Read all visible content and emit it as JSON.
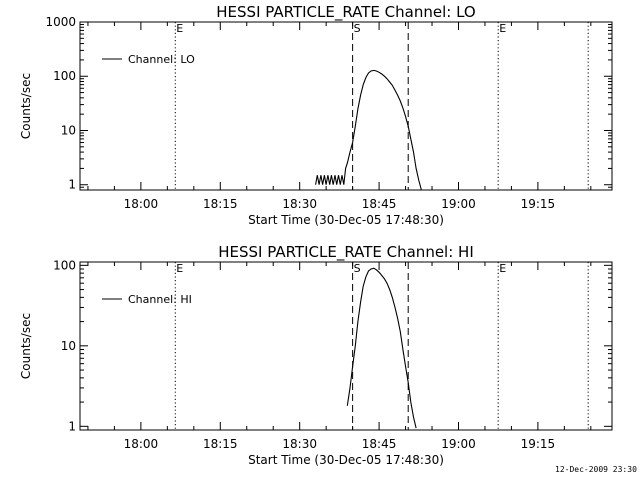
{
  "chart_data": [
    {
      "type": "line",
      "title": "HESSI PARTICLE_RATE Channel: LO",
      "xlabel": "Start Time (30-Dec-05 17:48:30)",
      "ylabel": "Counts/sec",
      "y_scale": "log",
      "ylim": [
        0.8,
        1000
      ],
      "xlim": [
        "17:48:30",
        "19:29:00"
      ],
      "x_ticks": [
        "18:00",
        "18:15",
        "18:30",
        "18:45",
        "19:00",
        "19:15"
      ],
      "y_ticks": [
        "1",
        "10",
        "100",
        "1000"
      ],
      "legend": {
        "entries": [
          "Channel: LO"
        ],
        "position": "top-left"
      },
      "markers": [
        {
          "style": "dotted",
          "time": "18:06:30",
          "label": "E"
        },
        {
          "style": "dashed",
          "time": "18:40:00",
          "label": "S"
        },
        {
          "style": "dashed",
          "time": "18:50:30",
          "label": ""
        },
        {
          "style": "dotted",
          "time": "19:07:30",
          "label": "E"
        },
        {
          "style": "dotted",
          "time": "19:24:30",
          "label": ""
        }
      ],
      "series": [
        {
          "name": "Channel: LO",
          "x": [
            "18:33:00",
            "18:33:20",
            "18:33:40",
            "18:34:00",
            "18:34:20",
            "18:34:40",
            "18:35:00",
            "18:35:20",
            "18:35:40",
            "18:36:00",
            "18:36:20",
            "18:36:40",
            "18:37:00",
            "18:37:20",
            "18:37:40",
            "18:38:00",
            "18:38:20",
            "18:38:40",
            "18:39:00",
            "18:39:30",
            "18:40:00",
            "18:40:30",
            "18:41:00",
            "18:41:30",
            "18:42:00",
            "18:42:30",
            "18:43:00",
            "18:43:30",
            "18:44:00",
            "18:44:30",
            "18:45:00",
            "18:45:30",
            "18:46:00",
            "18:46:30",
            "18:47:00",
            "18:47:30",
            "18:48:00",
            "18:48:30",
            "18:49:00",
            "18:49:30",
            "18:50:00",
            "18:50:30",
            "18:51:00",
            "18:51:30",
            "18:52:00",
            "18:52:30",
            "18:53:00"
          ],
          "y": [
            1,
            1.5,
            1,
            1.5,
            1,
            1.5,
            1,
            1.5,
            1,
            1.5,
            1,
            1.5,
            1,
            1.5,
            1,
            1.5,
            1,
            2,
            2.5,
            4,
            6,
            12,
            25,
            45,
            70,
            95,
            115,
            125,
            128,
            125,
            118,
            110,
            100,
            90,
            78,
            68,
            55,
            45,
            35,
            26,
            18,
            12,
            7,
            4,
            2,
            1.2,
            0.8
          ]
        }
      ]
    },
    {
      "type": "line",
      "title": "HESSI PARTICLE_RATE Channel: HI",
      "xlabel": "Start Time (30-Dec-05 17:48:30)",
      "ylabel": "Counts/sec",
      "y_scale": "log",
      "ylim": [
        0.9,
        110
      ],
      "xlim": [
        "17:48:30",
        "19:29:00"
      ],
      "x_ticks": [
        "18:00",
        "18:15",
        "18:30",
        "18:45",
        "19:00",
        "19:15"
      ],
      "y_ticks": [
        "1",
        "10",
        "100"
      ],
      "legend": {
        "entries": [
          "Channel: HI"
        ],
        "position": "top-left"
      },
      "markers": [
        {
          "style": "dotted",
          "time": "18:06:30",
          "label": "E"
        },
        {
          "style": "dashed",
          "time": "18:40:00",
          "label": "S"
        },
        {
          "style": "dashed",
          "time": "18:50:30",
          "label": ""
        },
        {
          "style": "dotted",
          "time": "19:07:30",
          "label": "E"
        },
        {
          "style": "dotted",
          "time": "19:24:30",
          "label": ""
        }
      ],
      "series": [
        {
          "name": "Channel: HI",
          "x": [
            "18:39:00",
            "18:39:30",
            "18:40:00",
            "18:40:30",
            "18:41:00",
            "18:41:30",
            "18:42:00",
            "18:42:30",
            "18:43:00",
            "18:43:30",
            "18:44:00",
            "18:44:30",
            "18:45:00",
            "18:45:30",
            "18:46:00",
            "18:46:30",
            "18:47:00",
            "18:47:30",
            "18:48:00",
            "18:48:30",
            "18:49:00",
            "18:49:30",
            "18:50:00",
            "18:50:30",
            "18:51:00",
            "18:51:30",
            "18:52:00"
          ],
          "y": [
            1.8,
            3,
            5.5,
            10,
            20,
            35,
            55,
            72,
            85,
            90,
            92,
            88,
            82,
            75,
            68,
            60,
            50,
            40,
            30,
            22,
            15,
            9,
            5.5,
            3.5,
            2,
            1.3,
            0.95
          ]
        }
      ]
    }
  ],
  "footer": {
    "date_stamp": "12-Dec-2009 23:30"
  }
}
